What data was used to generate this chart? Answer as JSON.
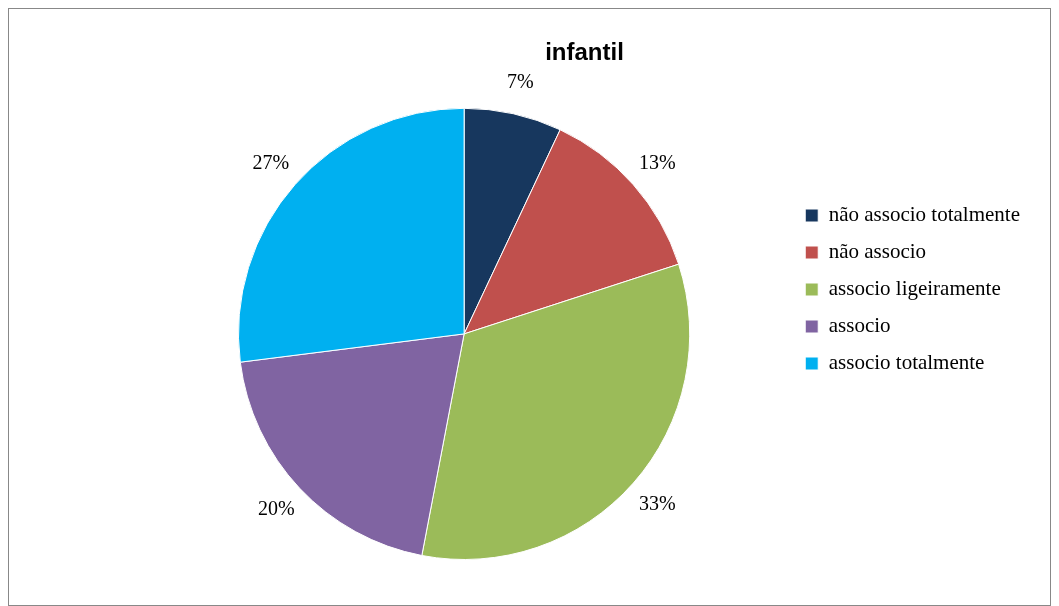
{
  "chart_data": {
    "type": "pie",
    "title": "infantil",
    "categories": [
      "não associo totalmente",
      "não associo",
      "associo ligeiramente",
      "associo",
      "associo totalmente"
    ],
    "values": [
      7,
      13,
      33,
      20,
      27
    ],
    "colors": [
      "#17375e",
      "#c0504d",
      "#9bbb59",
      "#8064a2",
      "#00b0f0"
    ],
    "value_labels": [
      "7%",
      "13%",
      "33%",
      "20%",
      "27%"
    ],
    "legend": "right"
  }
}
